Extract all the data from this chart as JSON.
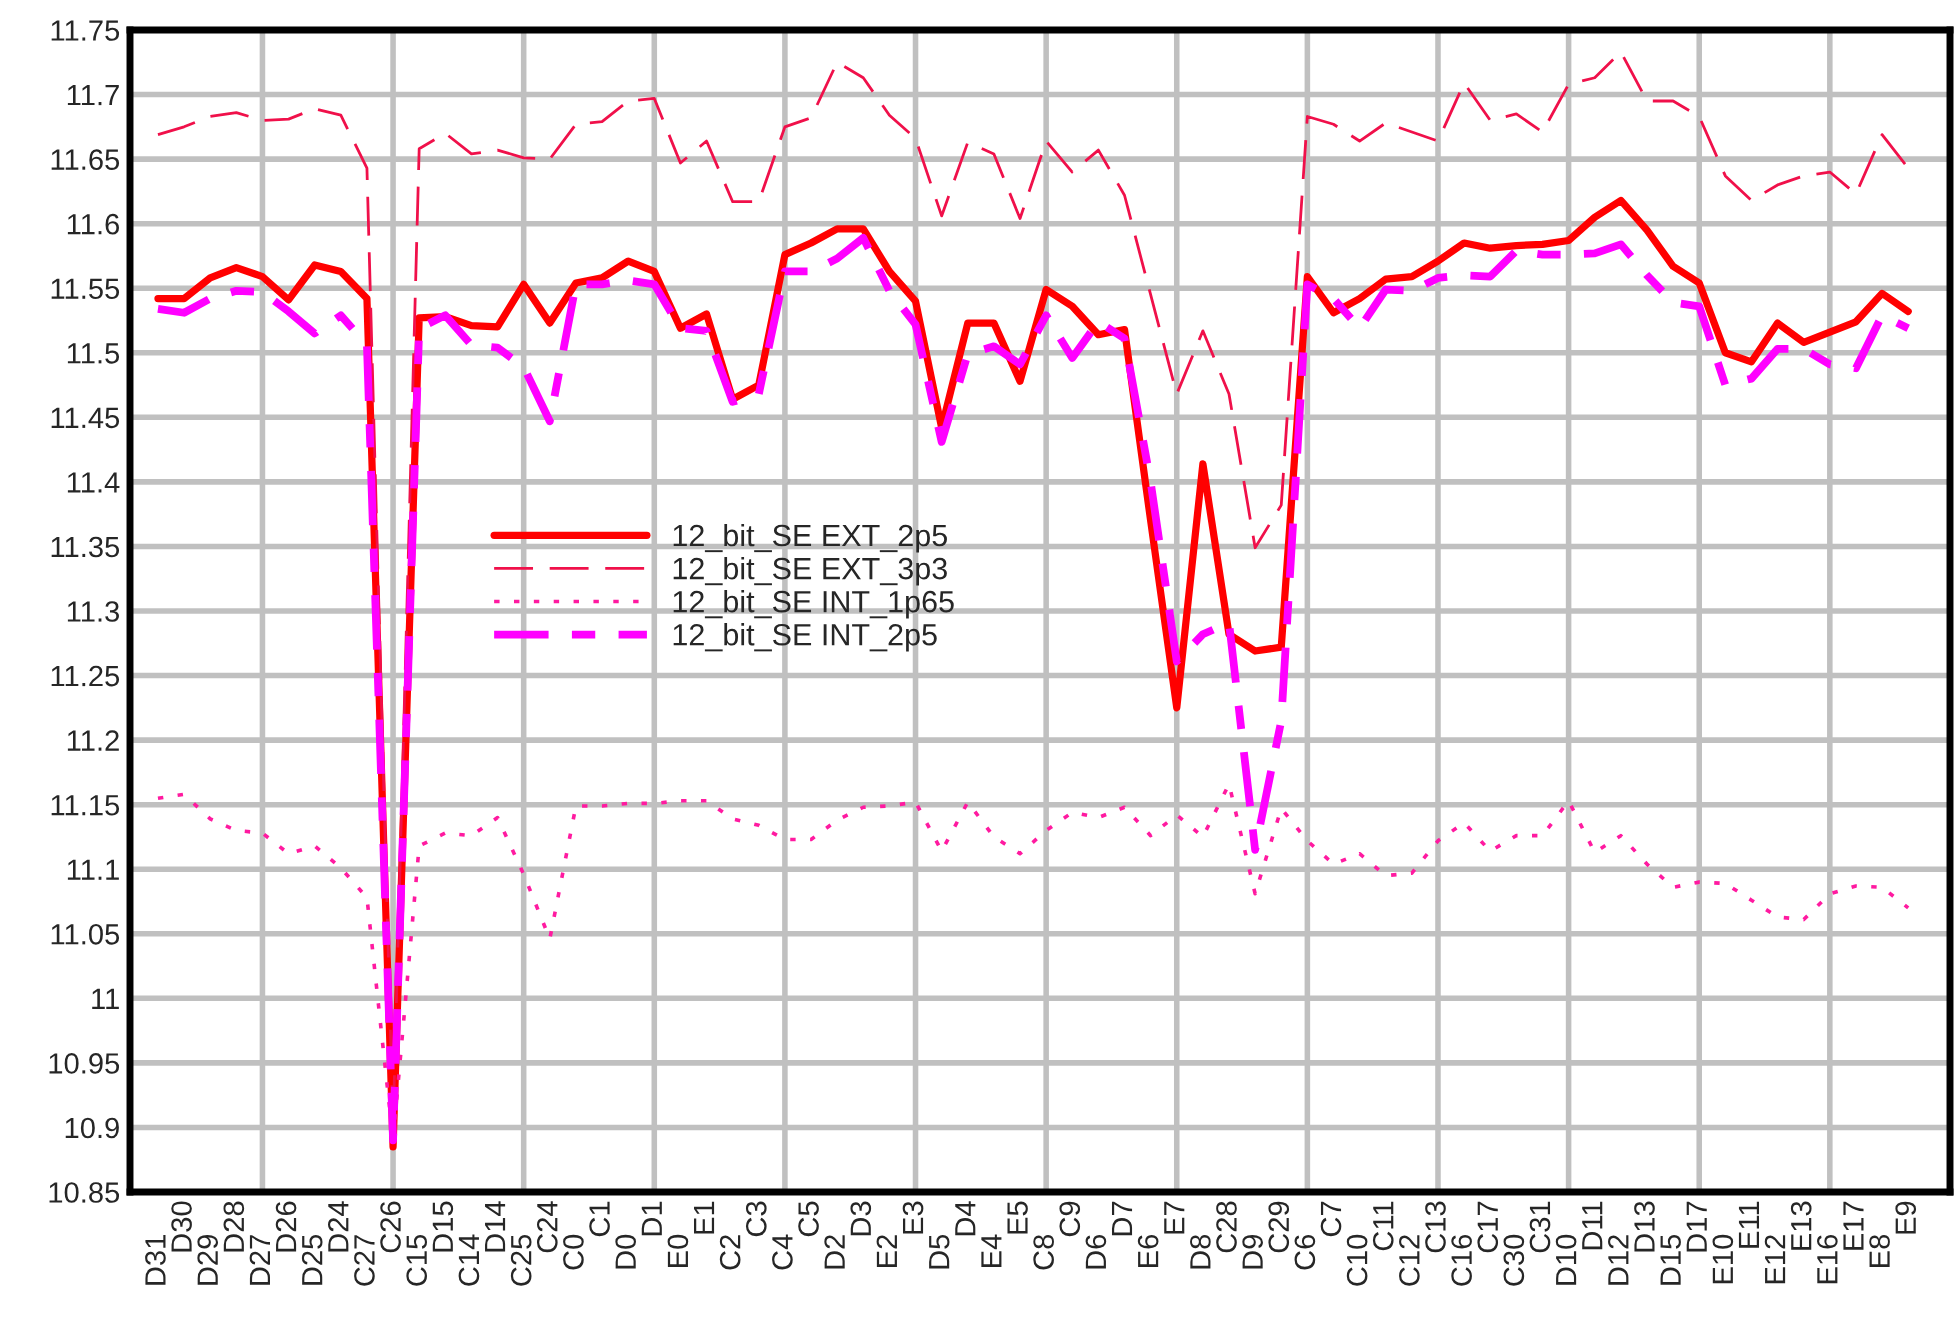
{
  "chart_data": {
    "type": "line",
    "categories": [
      "D31",
      "D30",
      "D29",
      "D28",
      "D27",
      "D26",
      "D25",
      "D24",
      "C27",
      "C26",
      "C15",
      "D15",
      "C14",
      "D14",
      "C25",
      "C24",
      "C0",
      "C1",
      "D0",
      "D1",
      "E0",
      "E1",
      "C2",
      "C3",
      "C4",
      "C5",
      "D2",
      "D3",
      "E2",
      "E3",
      "D5",
      "D4",
      "E4",
      "E5",
      "C8",
      "C9",
      "D6",
      "D7",
      "E6",
      "E7",
      "D8",
      "C28",
      "D9",
      "C29",
      "C6",
      "C7",
      "C10",
      "C11",
      "C12",
      "C13",
      "C16",
      "C17",
      "C30",
      "C31",
      "D10",
      "D11",
      "D12",
      "D13",
      "D15",
      "D17",
      "E10",
      "E11",
      "E12",
      "E13",
      "E16",
      "E17",
      "E8",
      "E9"
    ],
    "series": [
      {
        "name": "12_bit_SE EXT_2p5",
        "color": "#ff0000",
        "line_style": "solid",
        "values": [
          11.542,
          11.542,
          11.558,
          11.566,
          11.559,
          11.541,
          11.568,
          11.563,
          11.542,
          10.885,
          11.527,
          11.528,
          11.521,
          11.52,
          11.553,
          11.523,
          11.554,
          11.558,
          11.571,
          11.563,
          11.519,
          11.53,
          11.464,
          11.475,
          11.576,
          11.585,
          11.596,
          11.596,
          11.563,
          11.54,
          11.442,
          11.523,
          11.523,
          11.478,
          11.549,
          11.536,
          11.514,
          11.518,
          11.37,
          11.225,
          11.414,
          11.282,
          11.269,
          11.272,
          11.559,
          11.531,
          11.542,
          11.557,
          11.559,
          11.571,
          11.585,
          11.581,
          11.583,
          11.584,
          11.587,
          11.605,
          11.618,
          11.595,
          11.567,
          11.554,
          11.5,
          11.493,
          11.523,
          11.508,
          11.516,
          11.524,
          11.546,
          11.532
        ]
      },
      {
        "name": "12_bit_SE EXT_3p3",
        "color": "#f0104a",
        "line_style": "dashed",
        "values": [
          11.669,
          11.675,
          11.683,
          11.686,
          11.68,
          11.681,
          11.689,
          11.684,
          11.643,
          10.9,
          11.658,
          11.67,
          11.654,
          11.657,
          11.651,
          11.65,
          11.677,
          11.679,
          11.695,
          11.697,
          11.647,
          11.664,
          11.617,
          11.617,
          11.675,
          11.682,
          11.725,
          11.713,
          11.684,
          11.666,
          11.606,
          11.663,
          11.654,
          11.604,
          11.664,
          11.64,
          11.657,
          11.622,
          11.545,
          11.468,
          11.517,
          11.468,
          11.349,
          11.382,
          11.683,
          11.677,
          11.664,
          11.678,
          11.671,
          11.664,
          11.709,
          11.68,
          11.685,
          11.671,
          11.708,
          11.713,
          11.733,
          11.695,
          11.695,
          11.683,
          11.637,
          11.618,
          11.63,
          11.637,
          11.64,
          11.623,
          11.669,
          11.643
        ]
      },
      {
        "name": "12_bit_SE INT_1p65",
        "color": "#ff1aa0",
        "line_style": "dotted",
        "values": [
          11.155,
          11.158,
          11.139,
          11.13,
          11.128,
          11.112,
          11.118,
          11.101,
          11.078,
          10.89,
          11.118,
          11.128,
          11.126,
          11.14,
          11.096,
          11.046,
          11.149,
          11.149,
          11.151,
          11.151,
          11.153,
          11.153,
          11.139,
          11.134,
          11.123,
          11.123,
          11.138,
          11.148,
          11.149,
          11.152,
          11.114,
          11.152,
          11.125,
          11.112,
          11.13,
          11.144,
          11.14,
          11.148,
          11.126,
          11.142,
          11.125,
          11.166,
          11.081,
          11.147,
          11.122,
          11.104,
          11.112,
          11.095,
          11.097,
          11.122,
          11.136,
          11.114,
          11.126,
          11.126,
          11.153,
          11.113,
          11.126,
          11.104,
          11.086,
          11.09,
          11.089,
          11.076,
          11.063,
          11.061,
          11.081,
          11.087,
          11.086,
          11.07
        ]
      },
      {
        "name": "12_bit_SE INT_2p5",
        "color": "#ff00ff",
        "line_style": "dashdot",
        "values": [
          11.534,
          11.531,
          11.542,
          11.548,
          11.547,
          11.532,
          11.515,
          11.529,
          11.506,
          10.89,
          11.519,
          11.529,
          11.506,
          11.504,
          11.489,
          11.447,
          11.553,
          11.553,
          11.556,
          11.553,
          11.519,
          11.517,
          11.462,
          11.468,
          11.563,
          11.563,
          11.573,
          11.589,
          11.548,
          11.522,
          11.431,
          11.499,
          11.505,
          11.491,
          11.529,
          11.496,
          11.524,
          11.511,
          11.4,
          11.261,
          11.282,
          11.291,
          11.115,
          11.215,
          11.553,
          11.542,
          11.519,
          11.549,
          11.548,
          11.558,
          11.56,
          11.559,
          11.579,
          11.576,
          11.576,
          11.577,
          11.584,
          11.56,
          11.539,
          11.536,
          11.475,
          11.48,
          11.503,
          11.503,
          11.491,
          11.488,
          11.529,
          11.519
        ]
      }
    ],
    "ylim": [
      10.85,
      11.75
    ],
    "yticks": [
      10.85,
      10.9,
      10.95,
      11,
      11.05,
      11.1,
      11.15,
      11.2,
      11.25,
      11.3,
      11.35,
      11.4,
      11.45,
      11.5,
      11.55,
      11.6,
      11.65,
      11.7,
      11.75
    ],
    "grid": true,
    "legend": "center left",
    "marker": "none"
  }
}
